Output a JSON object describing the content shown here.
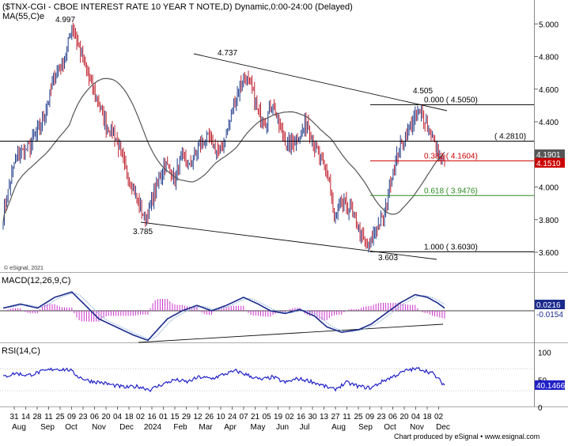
{
  "header": {
    "title": "($TNX-CGI - CBOE INTEREST RATE 10 YEAR T NOTE,D) Dynamic,0:00-24:00 (Delayed)",
    "ma_label": "MA(55,C)e"
  },
  "copyright": "© eSignal, 2021",
  "footer": "Chart produced by eSignal • www.esignal.com",
  "colors": {
    "candle_up": "#1f3c8a",
    "candle_down": "#c0202e",
    "ma": "#555555",
    "macd_line": "#1a2a8c",
    "signal_line": "#8fb4d8",
    "hist": "#cc33cc",
    "rsi": "#2020c8",
    "fib_red": "#cc0000",
    "fib_green": "#2e8b22"
  },
  "chart_data": [
    {
      "type": "candlestick",
      "yaxis": {
        "min": 3.52,
        "max": 5.08,
        "ticks": [
          "3.600",
          "3.800",
          "4.000",
          "4.200",
          "4.400",
          "4.600",
          "4.800",
          "5.000"
        ]
      },
      "xaxis": {
        "day_ticks": [
          "31",
          "14",
          "28",
          "11",
          "25",
          "09",
          "23",
          "06",
          "20",
          "04",
          "18",
          "02",
          "16",
          "01",
          "15",
          "29",
          "12",
          "26",
          "10",
          "24",
          "07",
          "21",
          "05",
          "19",
          "02",
          "16",
          "30",
          "13",
          "27",
          "11",
          "25",
          "09",
          "23",
          "06",
          "20",
          "04",
          "18",
          "02"
        ],
        "month_labels": [
          "Aug",
          "Sep",
          "Oct",
          "Nov",
          "Dec",
          "2024",
          "Feb",
          "Mar",
          "Apr",
          "May",
          "Jun",
          "Jul",
          "Aug",
          "Sep",
          "Oct",
          "Nov",
          "Dec"
        ]
      },
      "anchors": [
        [
          0,
          3.82
        ],
        [
          10,
          4.18
        ],
        [
          22,
          4.25
        ],
        [
          32,
          4.4
        ],
        [
          42,
          4.68
        ],
        [
          50,
          4.78
        ],
        [
          56,
          4.99
        ],
        [
          62,
          4.85
        ],
        [
          68,
          4.7
        ],
        [
          76,
          4.55
        ],
        [
          84,
          4.38
        ],
        [
          92,
          4.3
        ],
        [
          100,
          4.1
        ],
        [
          108,
          3.95
        ],
        [
          116,
          3.8
        ],
        [
          124,
          3.98
        ],
        [
          132,
          4.15
        ],
        [
          140,
          4.05
        ],
        [
          146,
          4.2
        ],
        [
          152,
          4.12
        ],
        [
          160,
          4.25
        ],
        [
          168,
          4.3
        ],
        [
          176,
          4.2
        ],
        [
          184,
          4.38
        ],
        [
          190,
          4.55
        ],
        [
          196,
          4.68
        ],
        [
          202,
          4.62
        ],
        [
          208,
          4.45
        ],
        [
          214,
          4.4
        ],
        [
          220,
          4.52
        ],
        [
          226,
          4.35
        ],
        [
          232,
          4.25
        ],
        [
          240,
          4.3
        ],
        [
          248,
          4.4
        ],
        [
          254,
          4.25
        ],
        [
          260,
          4.15
        ],
        [
          266,
          4.05
        ],
        [
          270,
          3.78
        ],
        [
          276,
          3.9
        ],
        [
          284,
          3.85
        ],
        [
          292,
          3.7
        ],
        [
          298,
          3.62
        ],
        [
          304,
          3.75
        ],
        [
          310,
          3.8
        ],
        [
          316,
          4.05
        ],
        [
          324,
          4.25
        ],
        [
          332,
          4.38
        ],
        [
          338,
          4.45
        ],
        [
          344,
          4.42
        ],
        [
          350,
          4.3
        ],
        [
          356,
          4.18
        ],
        [
          360,
          4.15
        ]
      ],
      "last_close": 4.151,
      "ma_last": 4.1901,
      "price_labels": {
        "high": "4.997",
        "mid_high": "4.737",
        "low1": "3.785",
        "low2": "3.603",
        "recent_high": "4.505"
      },
      "levels": [
        {
          "name": "fib-0",
          "value": 4.505,
          "label": "0.000  ( 4.5050)",
          "color": "#000000"
        },
        {
          "name": "support",
          "value": 4.281,
          "label": "( 4.2810)",
          "color": "#000000"
        },
        {
          "name": "fib-382",
          "value": 4.1604,
          "label": "0.382  ( 4.1604)",
          "color": "#cc0000"
        },
        {
          "name": "fib-618",
          "value": 3.9476,
          "label": "0.618  ( 3.9476)",
          "color": "#2e8b22"
        },
        {
          "name": "fib-100",
          "value": 3.603,
          "label": "1.000  ( 3.6030)",
          "color": "#000000"
        }
      ],
      "badges": {
        "ma": "4.1901",
        "price": "4.1510"
      }
    },
    {
      "type": "line",
      "title": "MACD(12,26,9,C)",
      "badges": {
        "macd": "0.0216",
        "signal": "-0.0154"
      },
      "anchors": [
        [
          0,
          0.02
        ],
        [
          14,
          0.05
        ],
        [
          28,
          0.02
        ],
        [
          42,
          0.1
        ],
        [
          56,
          0.14
        ],
        [
          66,
          0.05
        ],
        [
          78,
          -0.06
        ],
        [
          92,
          -0.12
        ],
        [
          106,
          -0.18
        ],
        [
          118,
          -0.22
        ],
        [
          126,
          -0.14
        ],
        [
          134,
          -0.06
        ],
        [
          146,
          0.0
        ],
        [
          158,
          0.04
        ],
        [
          170,
          0.0
        ],
        [
          182,
          0.04
        ],
        [
          196,
          0.1
        ],
        [
          208,
          0.05
        ],
        [
          218,
          0.0
        ],
        [
          230,
          -0.02
        ],
        [
          242,
          0.01
        ],
        [
          254,
          -0.04
        ],
        [
          264,
          -0.12
        ],
        [
          276,
          -0.16
        ],
        [
          290,
          -0.14
        ],
        [
          300,
          -0.1
        ],
        [
          312,
          -0.02
        ],
        [
          324,
          0.06
        ],
        [
          336,
          0.12
        ],
        [
          346,
          0.1
        ],
        [
          354,
          0.06
        ],
        [
          360,
          0.02
        ]
      ]
    },
    {
      "type": "line",
      "title": "RSI(14,C)",
      "yaxis": {
        "min": 0,
        "max": 100,
        "ticks": [
          "100",
          "50",
          "0"
        ]
      },
      "badges": {
        "rsi": "40.1466"
      },
      "anchors": [
        [
          0,
          55
        ],
        [
          10,
          62
        ],
        [
          20,
          58
        ],
        [
          30,
          64
        ],
        [
          42,
          70
        ],
        [
          54,
          68
        ],
        [
          62,
          55
        ],
        [
          70,
          48
        ],
        [
          80,
          45
        ],
        [
          90,
          40
        ],
        [
          100,
          36
        ],
        [
          110,
          38
        ],
        [
          120,
          32
        ],
        [
          130,
          42
        ],
        [
          140,
          50
        ],
        [
          150,
          46
        ],
        [
          160,
          55
        ],
        [
          170,
          52
        ],
        [
          180,
          60
        ],
        [
          190,
          66
        ],
        [
          200,
          58
        ],
        [
          210,
          50
        ],
        [
          220,
          55
        ],
        [
          230,
          45
        ],
        [
          240,
          52
        ],
        [
          250,
          48
        ],
        [
          260,
          40
        ],
        [
          270,
          32
        ],
        [
          280,
          45
        ],
        [
          290,
          38
        ],
        [
          300,
          35
        ],
        [
          310,
          48
        ],
        [
          320,
          58
        ],
        [
          330,
          68
        ],
        [
          340,
          70
        ],
        [
          350,
          62
        ],
        [
          360,
          40
        ]
      ]
    }
  ]
}
